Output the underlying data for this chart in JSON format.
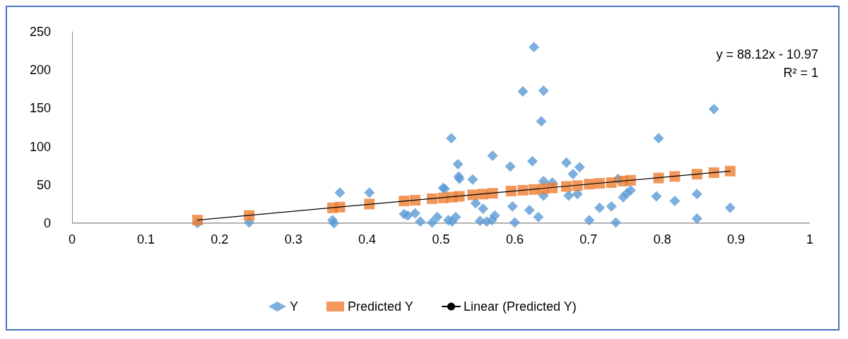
{
  "chart_data": {
    "type": "scatter",
    "xlim": [
      0,
      1
    ],
    "xticks": [
      0,
      0.1,
      0.2,
      0.3,
      0.4,
      0.5,
      0.6,
      0.7,
      0.8,
      0.9,
      1
    ],
    "ylim": [
      0,
      250
    ],
    "yticks": [
      0,
      50,
      100,
      150,
      200,
      250
    ],
    "grid": false,
    "legend": "bottom",
    "annotations": [
      "y = 88.12x - 10.97",
      "R² = 1"
    ],
    "series": [
      {
        "name": "Y",
        "color": "#5b9bd5",
        "marker": "diamond",
        "x": [
          0.17,
          0.24,
          0.353,
          0.355,
          0.363,
          0.403,
          0.45,
          0.455,
          0.465,
          0.472,
          0.488,
          0.495,
          0.503,
          0.505,
          0.51,
          0.514,
          0.515,
          0.52,
          0.523,
          0.524,
          0.525,
          0.543,
          0.547,
          0.553,
          0.557,
          0.562,
          0.569,
          0.57,
          0.573,
          0.594,
          0.595,
          0.597,
          0.6,
          0.611,
          0.62,
          0.624,
          0.626,
          0.632,
          0.636,
          0.639,
          0.639,
          0.639,
          0.651,
          0.67,
          0.673,
          0.679,
          0.685,
          0.688,
          0.701,
          0.715,
          0.731,
          0.737,
          0.74,
          0.747,
          0.752,
          0.757,
          0.792,
          0.795,
          0.817,
          0.819,
          0.847,
          0.847,
          0.87,
          0.892
        ],
        "values": [
          0,
          1,
          4,
          0,
          40,
          40,
          12,
          10,
          13,
          2,
          1,
          8,
          46,
          45,
          4,
          111,
          2,
          8,
          77,
          61,
          58,
          57,
          26,
          3,
          19,
          2,
          4,
          88,
          10,
          74,
          null,
          22,
          1,
          172,
          17,
          81,
          230,
          8,
          133,
          173,
          55,
          36,
          53,
          79,
          36,
          64,
          38,
          73,
          4,
          20,
          22,
          1,
          58,
          34,
          39,
          43,
          35,
          111,
          29,
          null,
          38,
          6,
          149,
          20
        ]
      },
      {
        "name": "Predicted Y",
        "color": "#ed7d31",
        "marker": "square",
        "x": [
          0.17,
          0.24,
          0.353,
          0.363,
          0.403,
          0.45,
          0.465,
          0.488,
          0.503,
          0.515,
          0.525,
          0.543,
          0.557,
          0.57,
          0.595,
          0.611,
          0.626,
          0.639,
          0.651,
          0.67,
          0.685,
          0.701,
          0.715,
          0.731,
          0.747,
          0.757,
          0.795,
          0.817,
          0.847,
          0.87,
          0.892
        ],
        "values": [
          4,
          10,
          20,
          21,
          25,
          29,
          30,
          32,
          33,
          34,
          35,
          37,
          38,
          39,
          42,
          43,
          44,
          45,
          46,
          48,
          49,
          51,
          52,
          53,
          55,
          56,
          59,
          61,
          64,
          66,
          68
        ]
      },
      {
        "name": "Linear (Predicted Y)",
        "type": "line",
        "color": "#000000",
        "marker": "none",
        "line_style": "solid",
        "x": [
          0.17,
          0.892
        ],
        "values": [
          4,
          68
        ]
      }
    ]
  }
}
